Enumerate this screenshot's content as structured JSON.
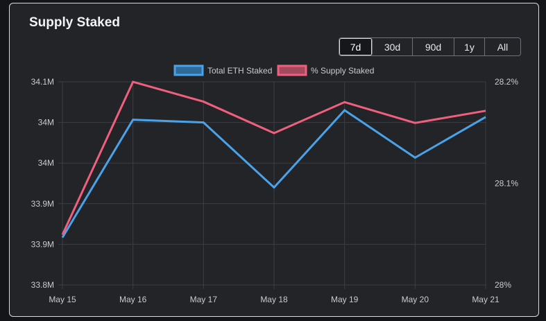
{
  "title": "Supply Staked",
  "range_buttons": [
    {
      "label": "7d",
      "active": true
    },
    {
      "label": "30d",
      "active": false
    },
    {
      "label": "90d",
      "active": false
    },
    {
      "label": "1y",
      "active": false
    },
    {
      "label": "All",
      "active": false
    }
  ],
  "colors": {
    "card_background": "#222428",
    "eth_staked": "#4aa3e8",
    "supply_staked": "#f0607e",
    "grid": "#3b3e44"
  },
  "chart_data": {
    "type": "line",
    "title": "",
    "categories": [
      "May 15",
      "May 16",
      "May 17",
      "May 18",
      "May 19",
      "May 20",
      "May 21"
    ],
    "legend": [
      "Total ETH Staked",
      "% Supply Staked"
    ],
    "legend_position": "top-center",
    "grid": true,
    "y_left": {
      "tick_labels": [
        "34.1M",
        "34M",
        "34M",
        "33.9M",
        "33.9M",
        "33.8M"
      ],
      "ylim": [
        33.8,
        34.1
      ]
    },
    "y_right": {
      "tick_labels": [
        "28.2%",
        "28.1%",
        "28%"
      ],
      "ylim": [
        28.0,
        28.2
      ]
    },
    "series": [
      {
        "name": "Total ETH Staked",
        "axis": "left",
        "color": "#4aa3e8",
        "values": [
          33.87,
          34.044,
          34.04,
          33.944,
          34.058,
          33.988,
          34.048
        ]
      },
      {
        "name": "% Supply Staked",
        "axis": "right",
        "color": "#f0607e",
        "values": [
          28.0495,
          28.2,
          28.1805,
          28.1495,
          28.18,
          28.1595,
          28.1715
        ]
      }
    ]
  }
}
